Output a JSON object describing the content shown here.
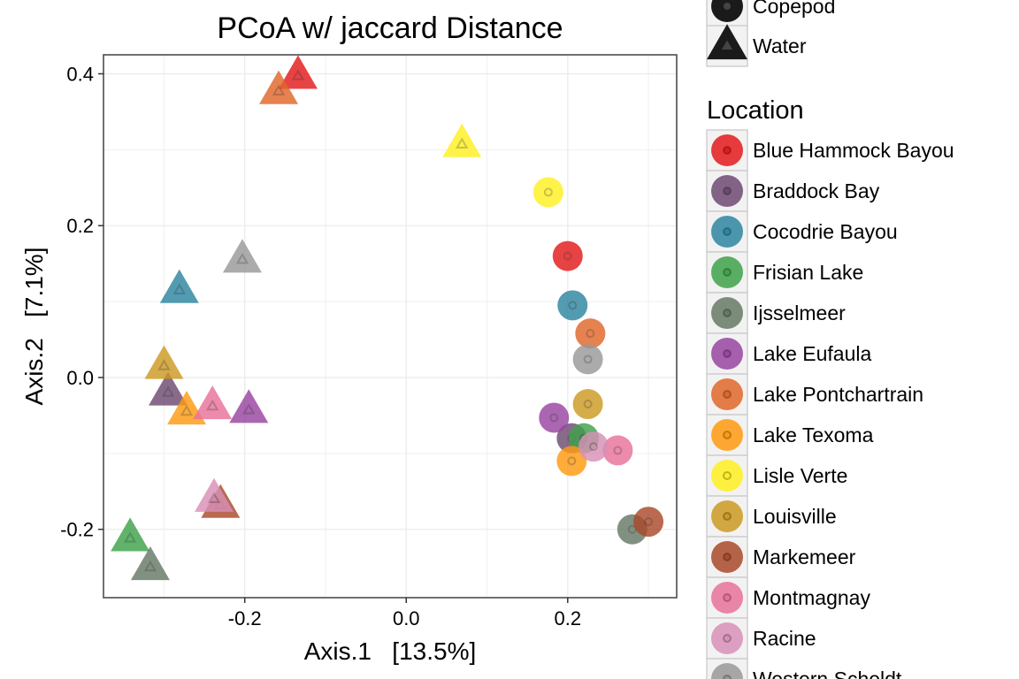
{
  "chart_data": {
    "type": "scatter",
    "title": "PCoA w/ jaccard Distance",
    "xlabel": "Axis.1   [13.5%]",
    "ylabel": "Axis.2   [7.1%]",
    "xlim": [
      -0.375,
      0.335
    ],
    "ylim": [
      -0.29,
      0.425
    ],
    "xticks": [
      {
        "value": -0.2,
        "label": "-0.2"
      },
      {
        "value": 0.0,
        "label": "0.0"
      },
      {
        "value": 0.2,
        "label": "0.2"
      }
    ],
    "yticks": [
      {
        "value": -0.2,
        "label": "-0.2"
      },
      {
        "value": 0.0,
        "label": "0.0"
      },
      {
        "value": 0.2,
        "label": "0.2"
      },
      {
        "value": 0.4,
        "label": "0.4"
      }
    ],
    "grid": true,
    "legend_placement": "right",
    "shape_legend": {
      "items": [
        {
          "label": "Copepod",
          "shape": "circle"
        },
        {
          "label": "Water",
          "shape": "triangle"
        }
      ]
    },
    "location_legend": {
      "title": "Location",
      "items": [
        {
          "label": "Blue Hammock Bayou",
          "color": "#E41A1C"
        },
        {
          "label": "Braddock Bay",
          "color": "#6E4A72"
        },
        {
          "label": "Cocodrie Bayou",
          "color": "#2E86A0"
        },
        {
          "label": "Frisian Lake",
          "color": "#3FA24A"
        },
        {
          "label": "Ijsselmeer",
          "color": "#667A66"
        },
        {
          "label": "Lake Eufaula",
          "color": "#9845A0"
        },
        {
          "label": "Lake Pontchartrain",
          "color": "#E0672A"
        },
        {
          "label": "Lake Texoma",
          "color": "#FF9A10"
        },
        {
          "label": "Lisle Verte",
          "color": "#FFF022"
        },
        {
          "label": "Louisville",
          "color": "#CC9A22"
        },
        {
          "label": "Markemeer",
          "color": "#AA4A2A"
        },
        {
          "label": "Montmagnay",
          "color": "#E8729A"
        },
        {
          "label": "Racine",
          "color": "#D890B8"
        },
        {
          "label": "Western Scheldt",
          "color": "#999999"
        }
      ]
    },
    "series": [
      {
        "name": "Copepod",
        "shape": "circle",
        "points": [
          {
            "location": "Blue Hammock Bayou",
            "x": 0.2,
            "y": 0.16
          },
          {
            "location": "Braddock Bay",
            "x": 0.205,
            "y": -0.08
          },
          {
            "location": "Cocodrie Bayou",
            "x": 0.206,
            "y": 0.095
          },
          {
            "location": "Frisian Lake",
            "x": 0.22,
            "y": -0.08
          },
          {
            "location": "Ijsselmeer",
            "x": 0.28,
            "y": -0.2
          },
          {
            "location": "Lake Eufaula",
            "x": 0.183,
            "y": -0.053
          },
          {
            "location": "Lake Pontchartrain",
            "x": 0.228,
            "y": 0.058
          },
          {
            "location": "Lake Texoma",
            "x": 0.205,
            "y": -0.11
          },
          {
            "location": "Lisle Verte",
            "x": 0.176,
            "y": 0.244
          },
          {
            "location": "Louisville",
            "x": 0.225,
            "y": -0.035
          },
          {
            "location": "Markemeer",
            "x": 0.3,
            "y": -0.19
          },
          {
            "location": "Montmagnay",
            "x": 0.262,
            "y": -0.096
          },
          {
            "location": "Racine",
            "x": 0.232,
            "y": -0.091
          },
          {
            "location": "Western Scheldt",
            "x": 0.225,
            "y": 0.024
          }
        ]
      },
      {
        "name": "Water",
        "shape": "triangle",
        "points": [
          {
            "location": "Blue Hammock Bayou",
            "x": -0.134,
            "y": 0.397
          },
          {
            "location": "Braddock Bay",
            "x": -0.295,
            "y": -0.02
          },
          {
            "location": "Cocodrie Bayou",
            "x": -0.281,
            "y": 0.115
          },
          {
            "location": "Frisian Lake",
            "x": -0.342,
            "y": -0.212
          },
          {
            "location": "Ijsselmeer",
            "x": -0.317,
            "y": -0.25
          },
          {
            "location": "Lake Eufaula",
            "x": -0.195,
            "y": -0.043
          },
          {
            "location": "Lake Pontchartrain",
            "x": -0.158,
            "y": 0.377
          },
          {
            "location": "Lake Texoma",
            "x": -0.272,
            "y": -0.045
          },
          {
            "location": "Lisle Verte",
            "x": 0.069,
            "y": 0.307
          },
          {
            "location": "Louisville",
            "x": -0.3,
            "y": 0.015
          },
          {
            "location": "Markemeer",
            "x": -0.23,
            "y": -0.168
          },
          {
            "location": "Montmagnay",
            "x": -0.24,
            "y": -0.038
          },
          {
            "location": "Racine",
            "x": -0.238,
            "y": -0.16
          },
          {
            "location": "Western Scheldt",
            "x": -0.203,
            "y": 0.155
          }
        ]
      }
    ]
  }
}
